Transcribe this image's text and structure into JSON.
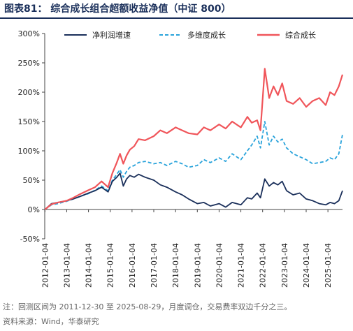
{
  "title": "图表81：  综合成长组合超额收益净值（中证 800）",
  "notes": {
    "line1": "注：回测区间为 2011-12-30 至 2025-08-29，月度调仓，交易费率双边千分之三。",
    "line2": "资料来源：Wind，华泰研究"
  },
  "chart_data": {
    "type": "line",
    "ylim": [
      -50,
      300
    ],
    "yticks": [
      "300%",
      "250%",
      "200%",
      "150%",
      "100%",
      "50%",
      "0%",
      "-50%"
    ],
    "ytick_values": [
      300,
      250,
      200,
      150,
      100,
      50,
      0,
      -50
    ],
    "xlim": [
      2011.99,
      2025.67
    ],
    "xticks": [
      "2012-01-04",
      "2013-01-04",
      "2014-01-04",
      "2015-01-04",
      "2016-01-04",
      "2017-01-04",
      "2018-01-04",
      "2019-01-04",
      "2020-01-04",
      "2021-01-04",
      "2022-01-04",
      "2023-01-04",
      "2024-01-04",
      "2025-01-04"
    ],
    "xtick_values": [
      2012,
      2013,
      2014,
      2015,
      2016,
      2017,
      2018,
      2019,
      2020,
      2021,
      2022,
      2023,
      2024,
      2025
    ],
    "legend_position": "top",
    "series": [
      {
        "name": "净利润增速",
        "color": "#1a2f5a",
        "style": "solid",
        "x": [
          2012.0,
          2012.3,
          2012.6,
          2013.0,
          2013.3,
          2013.6,
          2014.0,
          2014.3,
          2014.6,
          2014.9,
          2015.1,
          2015.3,
          2015.45,
          2015.6,
          2015.75,
          2015.9,
          2016.1,
          2016.3,
          2016.6,
          2017.0,
          2017.3,
          2017.6,
          2018.0,
          2018.3,
          2018.6,
          2019.0,
          2019.3,
          2019.6,
          2020.0,
          2020.3,
          2020.6,
          2021.0,
          2021.3,
          2021.5,
          2021.75,
          2021.9,
          2022.1,
          2022.3,
          2022.5,
          2022.7,
          2022.9,
          2023.1,
          2023.4,
          2023.7,
          2024.0,
          2024.3,
          2024.6,
          2024.9,
          2025.1,
          2025.3,
          2025.5,
          2025.67
        ],
        "y": [
          0,
          10,
          12,
          15,
          18,
          22,
          28,
          32,
          38,
          30,
          48,
          55,
          62,
          40,
          52,
          58,
          55,
          60,
          55,
          50,
          42,
          38,
          30,
          25,
          18,
          10,
          12,
          6,
          10,
          4,
          12,
          8,
          20,
          18,
          28,
          20,
          52,
          40,
          46,
          42,
          48,
          32,
          25,
          28,
          18,
          15,
          10,
          8,
          12,
          10,
          15,
          32
        ]
      },
      {
        "name": "多维度成长",
        "color": "#29a3db",
        "style": "dashed",
        "x": [
          2012.0,
          2012.3,
          2012.6,
          2013.0,
          2013.3,
          2013.6,
          2014.0,
          2014.3,
          2014.6,
          2014.9,
          2015.1,
          2015.3,
          2015.45,
          2015.6,
          2015.75,
          2015.9,
          2016.1,
          2016.3,
          2016.6,
          2017.0,
          2017.3,
          2017.6,
          2018.0,
          2018.3,
          2018.6,
          2019.0,
          2019.3,
          2019.6,
          2020.0,
          2020.3,
          2020.6,
          2021.0,
          2021.3,
          2021.5,
          2021.75,
          2021.9,
          2022.1,
          2022.3,
          2022.5,
          2022.7,
          2022.9,
          2023.1,
          2023.4,
          2023.7,
          2024.0,
          2024.3,
          2024.6,
          2024.9,
          2025.1,
          2025.3,
          2025.5,
          2025.67
        ],
        "y": [
          0,
          8,
          10,
          14,
          18,
          22,
          27,
          33,
          40,
          32,
          50,
          60,
          68,
          55,
          65,
          72,
          75,
          80,
          82,
          78,
          80,
          75,
          82,
          78,
          72,
          75,
          85,
          80,
          88,
          82,
          95,
          85,
          100,
          110,
          125,
          105,
          150,
          110,
          125,
          115,
          120,
          105,
          95,
          90,
          85,
          78,
          80,
          82,
          88,
          85,
          95,
          128
        ]
      },
      {
        "name": "综合成长",
        "color": "#f0555a",
        "style": "solid",
        "x": [
          2012.0,
          2012.3,
          2012.6,
          2013.0,
          2013.3,
          2013.6,
          2014.0,
          2014.3,
          2014.6,
          2014.9,
          2015.1,
          2015.3,
          2015.45,
          2015.6,
          2015.75,
          2015.9,
          2016.1,
          2016.3,
          2016.6,
          2017.0,
          2017.3,
          2017.6,
          2018.0,
          2018.3,
          2018.6,
          2019.0,
          2019.3,
          2019.6,
          2020.0,
          2020.3,
          2020.6,
          2021.0,
          2021.3,
          2021.5,
          2021.75,
          2021.9,
          2022.1,
          2022.3,
          2022.5,
          2022.7,
          2022.9,
          2023.1,
          2023.4,
          2023.7,
          2024.0,
          2024.3,
          2024.6,
          2024.9,
          2025.1,
          2025.3,
          2025.5,
          2025.67
        ],
        "y": [
          0,
          9,
          12,
          15,
          20,
          26,
          33,
          38,
          48,
          38,
          62,
          80,
          95,
          78,
          92,
          102,
          108,
          120,
          118,
          125,
          135,
          130,
          140,
          135,
          130,
          128,
          140,
          135,
          145,
          138,
          150,
          140,
          158,
          148,
          152,
          135,
          240,
          190,
          210,
          195,
          215,
          185,
          180,
          190,
          175,
          185,
          190,
          178,
          200,
          195,
          210,
          230
        ]
      }
    ]
  }
}
